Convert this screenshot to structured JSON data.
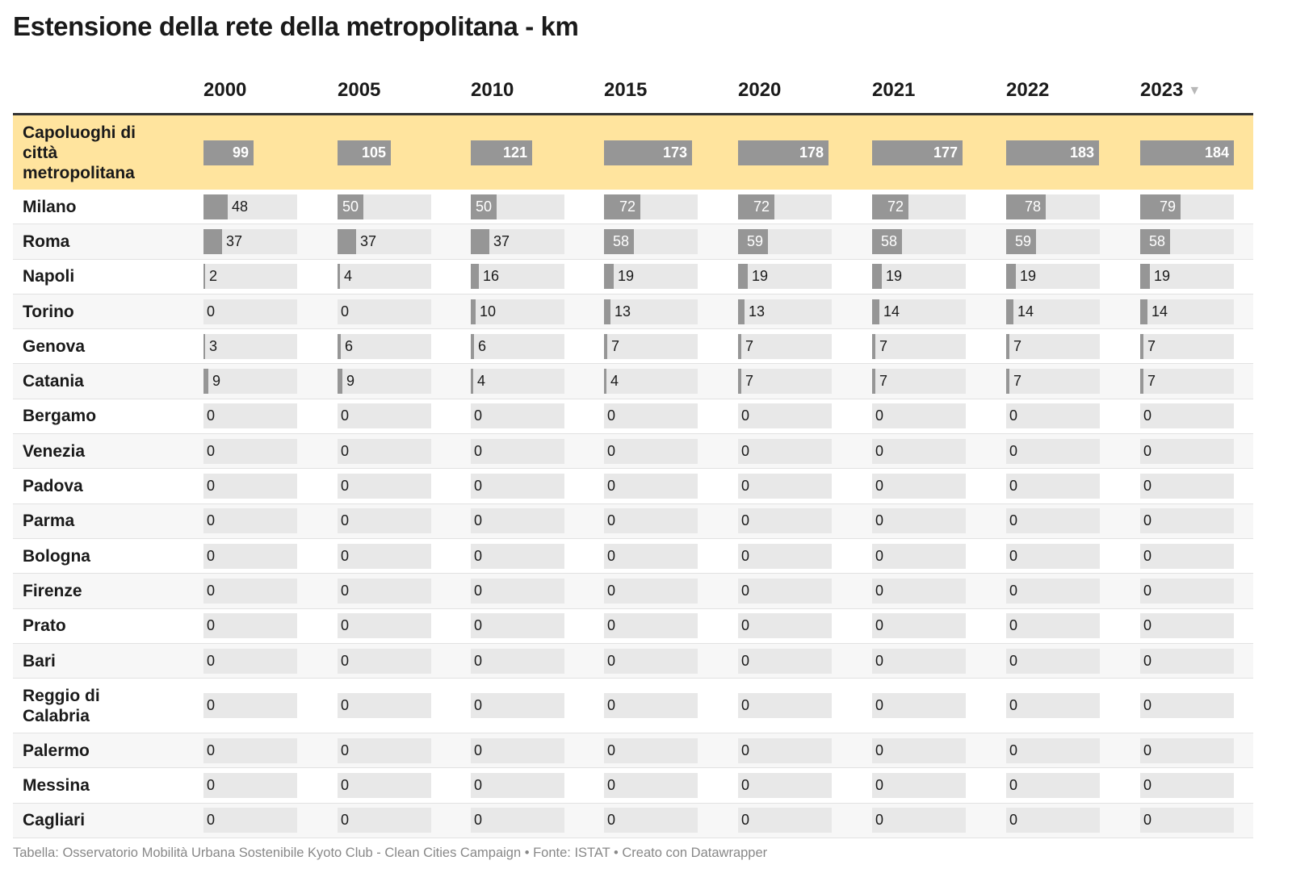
{
  "title": "Estensione della rete della metropolitana - km",
  "footer": "Tabella: Osservatorio Mobilità Urbana Sostenibile Kyoto Club - Clean Cities Campaign • Fonte: ISTAT • Creato con Datawrapper",
  "colors": {
    "highlight": "#ffe49e",
    "bar": "#969696",
    "bar_bg": "#e8e8e8",
    "stripe": "#f7f7f7"
  },
  "sort_icon": "triangle-down-icon",
  "sort_column": "2023",
  "chart_data": {
    "type": "table",
    "columns": [
      "2000",
      "2005",
      "2010",
      "2015",
      "2020",
      "2021",
      "2022",
      "2023"
    ],
    "bar_max": 184,
    "rows": [
      {
        "city": "Capoluoghi di città metropolitana",
        "values": [
          99,
          105,
          121,
          173,
          178,
          177,
          183,
          184
        ],
        "highlight": true
      },
      {
        "city": "Milano",
        "values": [
          48,
          50,
          50,
          72,
          72,
          72,
          78,
          79
        ]
      },
      {
        "city": "Roma",
        "values": [
          37,
          37,
          37,
          58,
          59,
          58,
          59,
          58
        ]
      },
      {
        "city": "Napoli",
        "values": [
          2,
          4,
          16,
          19,
          19,
          19,
          19,
          19
        ]
      },
      {
        "city": "Torino",
        "values": [
          0,
          0,
          10,
          13,
          13,
          14,
          14,
          14
        ]
      },
      {
        "city": "Genova",
        "values": [
          3,
          6,
          6,
          7,
          7,
          7,
          7,
          7
        ]
      },
      {
        "city": "Catania",
        "values": [
          9,
          9,
          4,
          4,
          7,
          7,
          7,
          7
        ]
      },
      {
        "city": "Bergamo",
        "values": [
          0,
          0,
          0,
          0,
          0,
          0,
          0,
          0
        ]
      },
      {
        "city": "Venezia",
        "values": [
          0,
          0,
          0,
          0,
          0,
          0,
          0,
          0
        ]
      },
      {
        "city": "Padova",
        "values": [
          0,
          0,
          0,
          0,
          0,
          0,
          0,
          0
        ]
      },
      {
        "city": "Parma",
        "values": [
          0,
          0,
          0,
          0,
          0,
          0,
          0,
          0
        ]
      },
      {
        "city": "Bologna",
        "values": [
          0,
          0,
          0,
          0,
          0,
          0,
          0,
          0
        ]
      },
      {
        "city": "Firenze",
        "values": [
          0,
          0,
          0,
          0,
          0,
          0,
          0,
          0
        ]
      },
      {
        "city": "Prato",
        "values": [
          0,
          0,
          0,
          0,
          0,
          0,
          0,
          0
        ]
      },
      {
        "city": "Bari",
        "values": [
          0,
          0,
          0,
          0,
          0,
          0,
          0,
          0
        ]
      },
      {
        "city": "Reggio di Calabria",
        "values": [
          0,
          0,
          0,
          0,
          0,
          0,
          0,
          0
        ]
      },
      {
        "city": "Palermo",
        "values": [
          0,
          0,
          0,
          0,
          0,
          0,
          0,
          0
        ]
      },
      {
        "city": "Messina",
        "values": [
          0,
          0,
          0,
          0,
          0,
          0,
          0,
          0
        ]
      },
      {
        "city": "Cagliari",
        "values": [
          0,
          0,
          0,
          0,
          0,
          0,
          0,
          0
        ]
      }
    ]
  }
}
